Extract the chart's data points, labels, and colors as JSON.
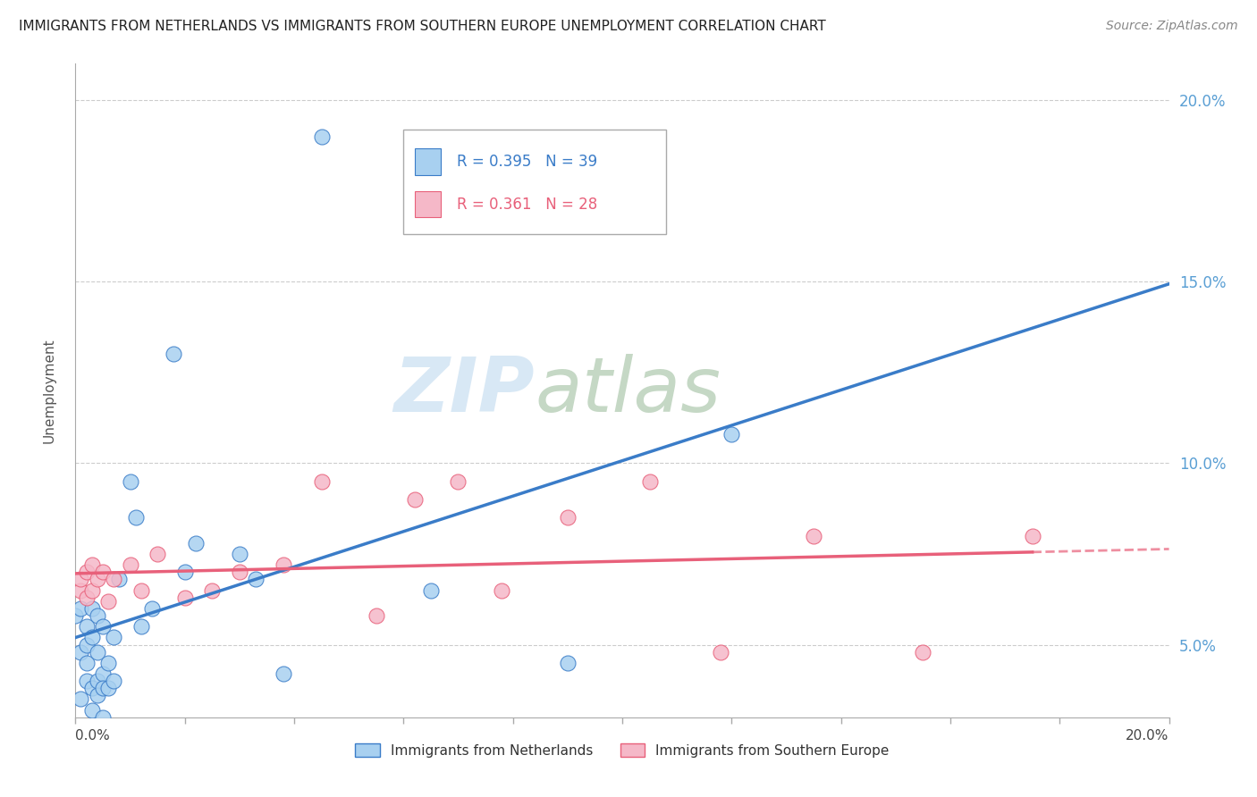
{
  "title": "IMMIGRANTS FROM NETHERLANDS VS IMMIGRANTS FROM SOUTHERN EUROPE UNEMPLOYMENT CORRELATION CHART",
  "source": "Source: ZipAtlas.com",
  "ylabel": "Unemployment",
  "r1": 0.395,
  "n1": 39,
  "r2": 0.361,
  "n2": 28,
  "color_netherlands": "#a8d0f0",
  "color_southern": "#f5b8c8",
  "color_line1": "#3a7cc8",
  "color_line2": "#e8607a",
  "color_yaxis": "#5a9fd4",
  "watermark_zip": "ZIP",
  "watermark_atlas": "atlas",
  "xlim": [
    0.0,
    0.2
  ],
  "ylim": [
    0.03,
    0.21
  ],
  "yticks": [
    0.05,
    0.1,
    0.15,
    0.2
  ],
  "netherlands_x": [
    0.0,
    0.001,
    0.001,
    0.001,
    0.002,
    0.002,
    0.002,
    0.002,
    0.003,
    0.003,
    0.003,
    0.003,
    0.004,
    0.004,
    0.004,
    0.004,
    0.005,
    0.005,
    0.005,
    0.005,
    0.006,
    0.006,
    0.007,
    0.007,
    0.008,
    0.01,
    0.011,
    0.012,
    0.014,
    0.018,
    0.02,
    0.022,
    0.03,
    0.033,
    0.038,
    0.045,
    0.065,
    0.09,
    0.12
  ],
  "netherlands_y": [
    0.058,
    0.06,
    0.048,
    0.035,
    0.055,
    0.05,
    0.045,
    0.04,
    0.06,
    0.052,
    0.038,
    0.032,
    0.058,
    0.048,
    0.04,
    0.036,
    0.055,
    0.042,
    0.038,
    0.03,
    0.045,
    0.038,
    0.052,
    0.04,
    0.068,
    0.095,
    0.085,
    0.055,
    0.06,
    0.13,
    0.07,
    0.078,
    0.075,
    0.068,
    0.042,
    0.19,
    0.065,
    0.045,
    0.108
  ],
  "southern_x": [
    0.001,
    0.001,
    0.002,
    0.002,
    0.003,
    0.003,
    0.004,
    0.005,
    0.006,
    0.007,
    0.01,
    0.012,
    0.015,
    0.02,
    0.025,
    0.03,
    0.038,
    0.045,
    0.055,
    0.062,
    0.07,
    0.078,
    0.09,
    0.105,
    0.118,
    0.135,
    0.155,
    0.175
  ],
  "southern_y": [
    0.065,
    0.068,
    0.063,
    0.07,
    0.065,
    0.072,
    0.068,
    0.07,
    0.062,
    0.068,
    0.072,
    0.065,
    0.075,
    0.063,
    0.065,
    0.07,
    0.072,
    0.095,
    0.058,
    0.09,
    0.095,
    0.065,
    0.085,
    0.095,
    0.048,
    0.08,
    0.048,
    0.08
  ]
}
